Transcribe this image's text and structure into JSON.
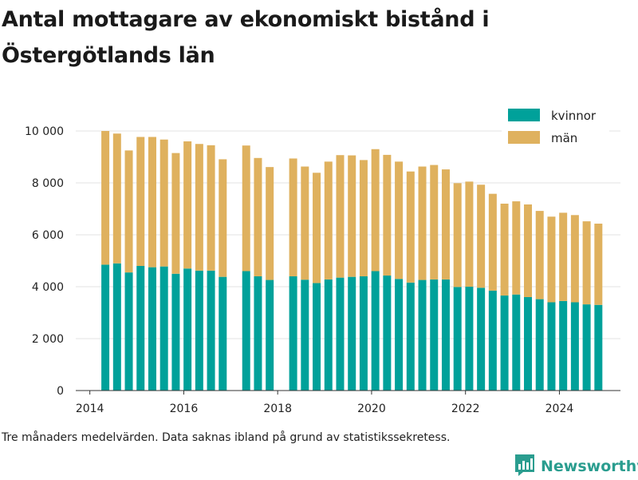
{
  "title": "Antal mottagare av ekonomiskt bistånd i Östergötlands län",
  "footnote": "Tre månaders medelvärden. Data saknas ibland på grund av statistikssekretess.",
  "brand": {
    "name": "Newsworthy",
    "icon": "newsworthy-bar-logo-icon",
    "color": "#2a9d8f"
  },
  "chart_data": {
    "type": "bar",
    "stacked": true,
    "x_unit": "year",
    "x": [
      2014.33,
      2014.58,
      2014.83,
      2015.08,
      2015.33,
      2015.58,
      2015.83,
      2016.08,
      2016.33,
      2016.58,
      2016.83,
      2017.33,
      2017.58,
      2017.83,
      2018.33,
      2018.58,
      2018.83,
      2019.08,
      2019.33,
      2019.58,
      2019.83,
      2020.08,
      2020.33,
      2020.58,
      2020.83,
      2021.08,
      2021.33,
      2021.58,
      2021.83,
      2022.08,
      2022.33,
      2022.58,
      2022.83,
      2023.08,
      2023.33,
      2023.58,
      2023.83,
      2024.08,
      2024.33,
      2024.58,
      2024.83
    ],
    "series": [
      {
        "name": "kvinnor",
        "color": "#00a19a",
        "values": [
          4850,
          4900,
          4550,
          4800,
          4750,
          4780,
          4500,
          4700,
          4620,
          4620,
          4380,
          4600,
          4400,
          4260,
          4400,
          4270,
          4140,
          4280,
          4350,
          4380,
          4400,
          4600,
          4430,
          4300,
          4160,
          4260,
          4280,
          4280,
          3990,
          4000,
          3960,
          3850,
          3660,
          3700,
          3600,
          3520,
          3400,
          3450,
          3400,
          3320,
          3300
        ]
      },
      {
        "name": "män",
        "color": "#dfb15e",
        "values": [
          5150,
          5000,
          4700,
          4970,
          5020,
          4890,
          4650,
          4900,
          4880,
          4830,
          4530,
          4840,
          4560,
          4350,
          4540,
          4360,
          4250,
          4540,
          4720,
          4680,
          4480,
          4700,
          4650,
          4520,
          4280,
          4370,
          4410,
          4240,
          4000,
          4050,
          3970,
          3730,
          3540,
          3590,
          3570,
          3400,
          3300,
          3400,
          3360,
          3200,
          3130
        ]
      }
    ],
    "xlim": [
      2013.7,
      2025.3
    ],
    "ylim": [
      0,
      10000
    ],
    "x_ticks": [
      2014,
      2016,
      2018,
      2020,
      2022,
      2024
    ],
    "x_tick_labels": [
      "2014",
      "2016",
      "2018",
      "2020",
      "2022",
      "2024"
    ],
    "y_ticks": [
      0,
      2000,
      4000,
      6000,
      8000,
      10000
    ],
    "y_tick_labels": [
      "0",
      "2 000",
      "4 000",
      "6 000",
      "8 000",
      "10 000"
    ],
    "grid": "horizontal",
    "legend": {
      "position": "top-right",
      "entries": [
        "kvinnor",
        "män"
      ]
    },
    "xlabel": "",
    "ylabel": ""
  }
}
